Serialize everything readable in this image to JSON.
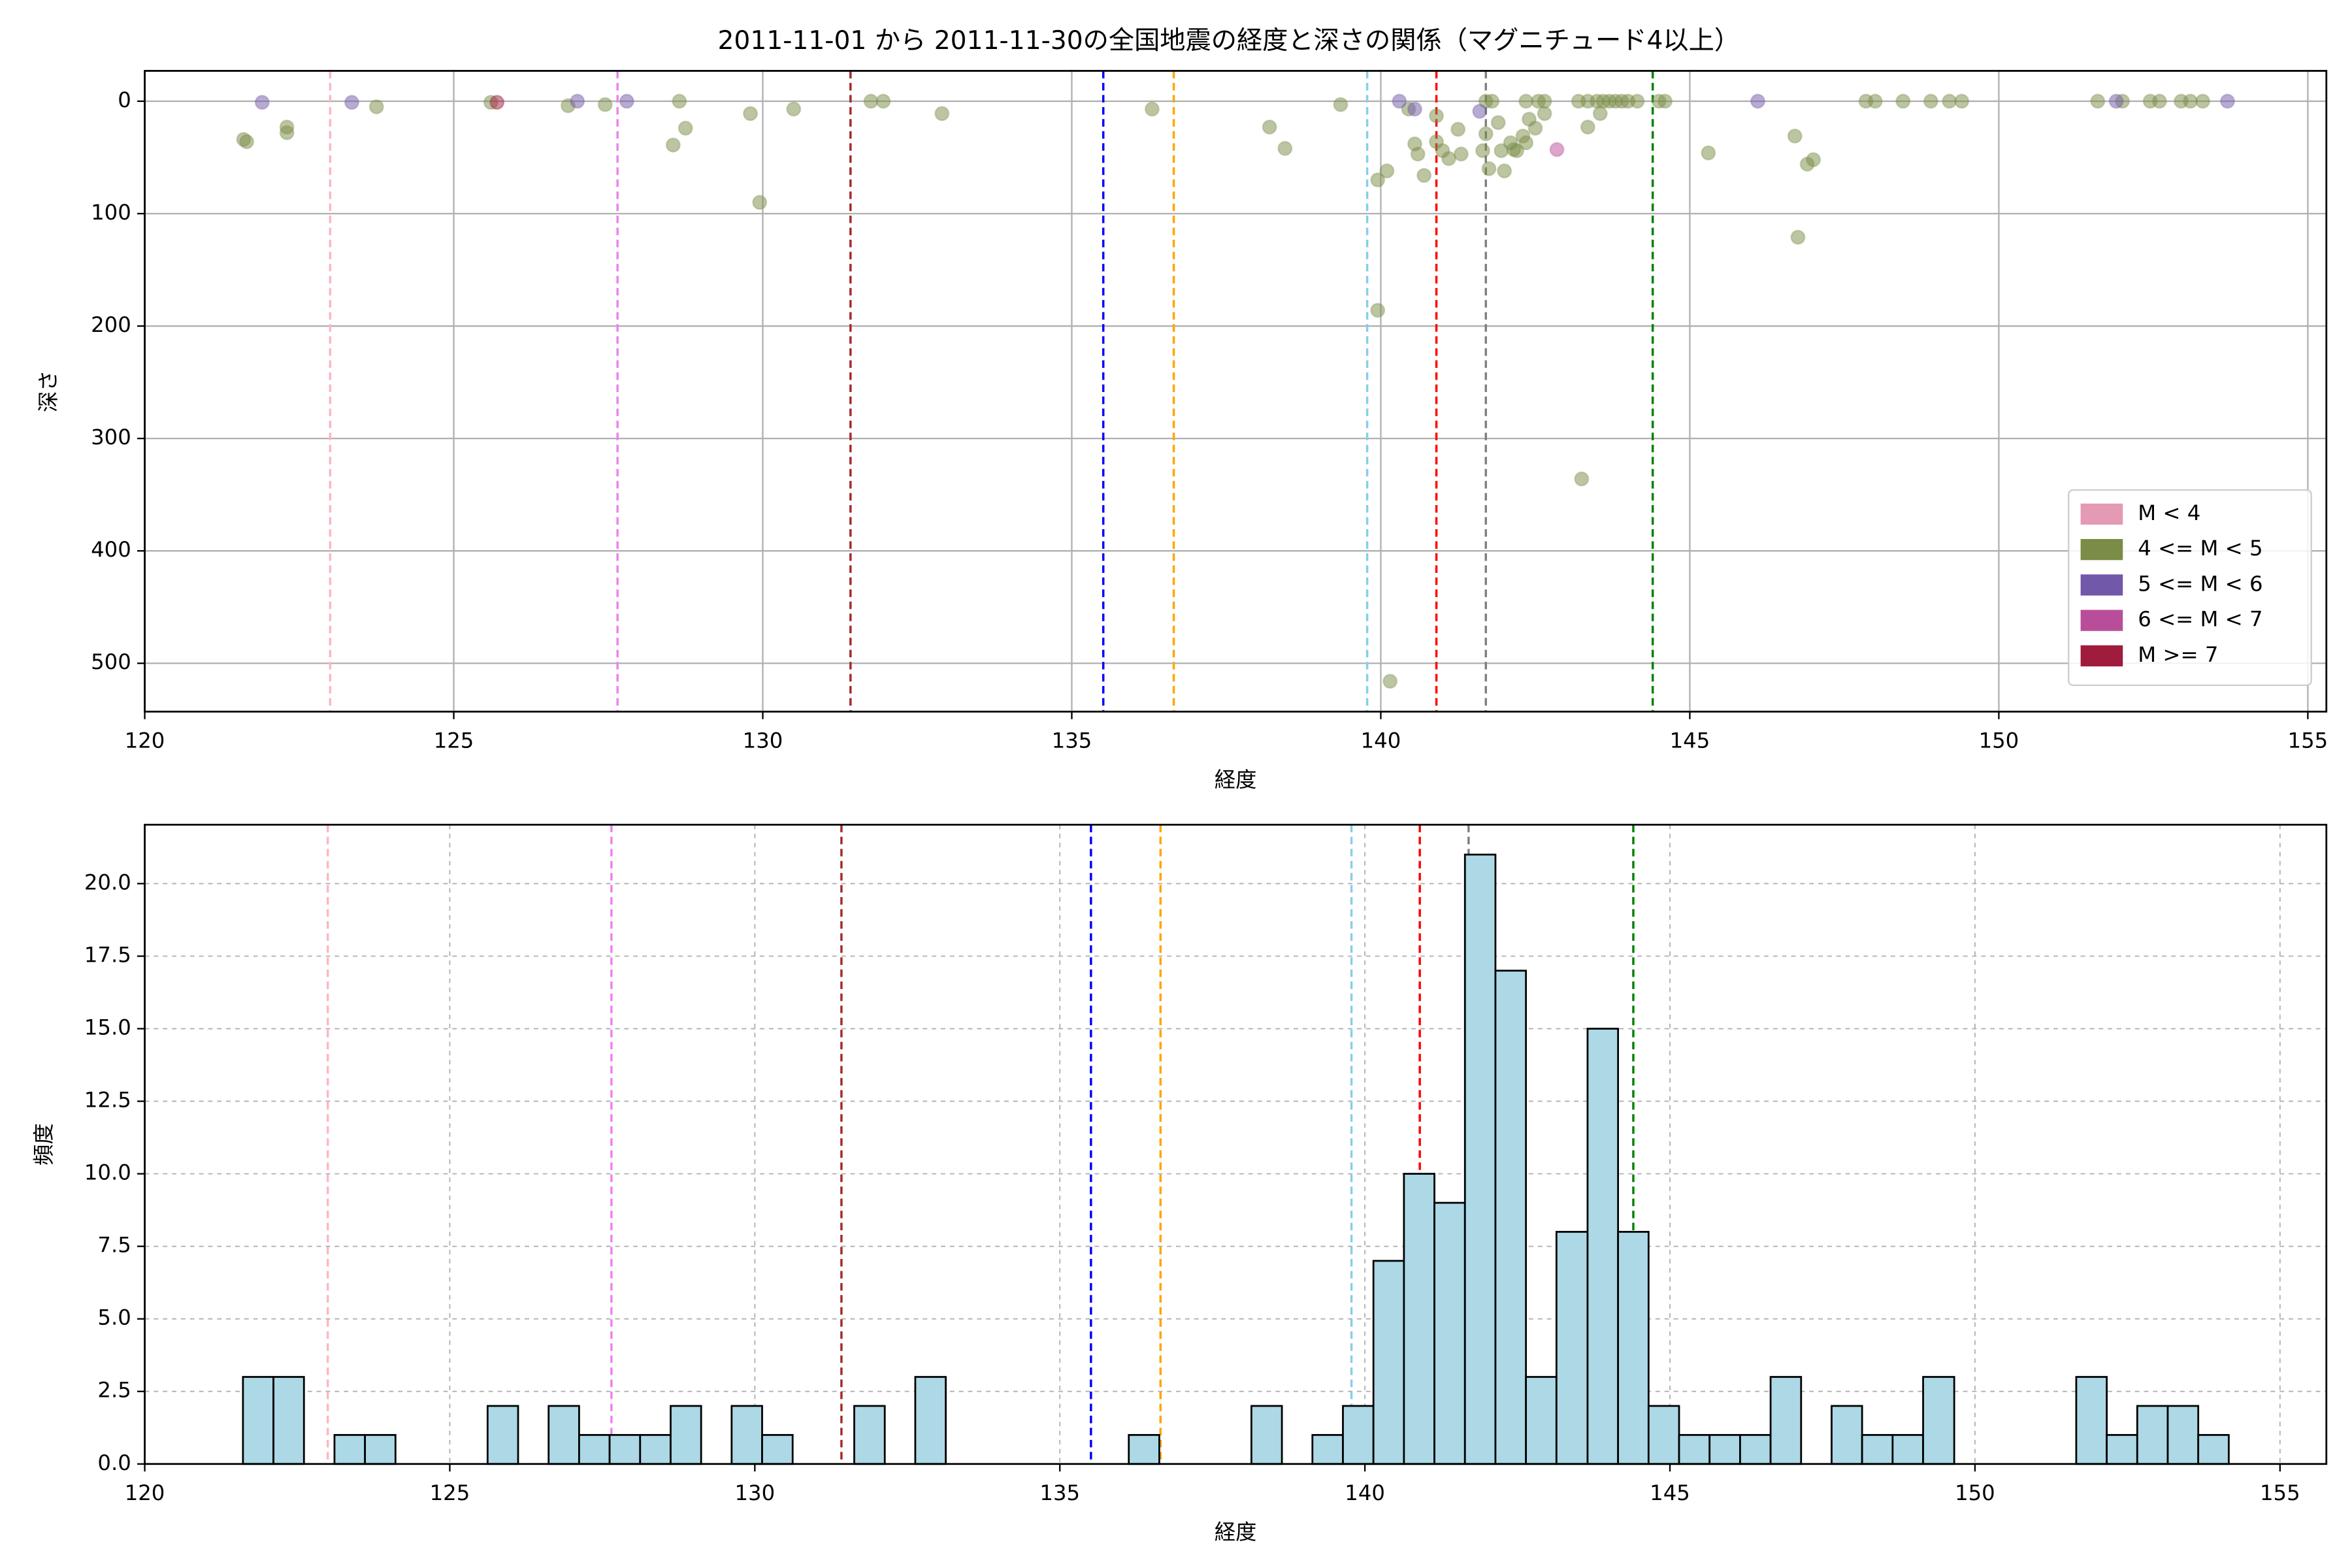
{
  "chart_data": [
    {
      "type": "scatter",
      "title": "2011-11-01 から 2011-11-30の全国地震の経度と深さの関係（マグニチュード4以上）",
      "xlabel": "経度",
      "ylabel": "深さ",
      "xlim": [
        120,
        155.3
      ],
      "xticks": [
        120,
        125,
        130,
        135,
        140,
        145,
        150,
        155
      ],
      "ylim": [
        -27,
        543
      ],
      "y_inverted": true,
      "yticks": [
        0,
        100,
        200,
        300,
        400,
        500
      ],
      "grid": true,
      "legend": "lower right",
      "alpha": 0.5,
      "vlines": [
        {
          "x": 123.0,
          "color": "#ffb6c1"
        },
        {
          "x": 127.65,
          "color": "#ee82ee"
        },
        {
          "x": 131.42,
          "color": "#a52a2a"
        },
        {
          "x": 135.51,
          "color": "#0000ff"
        },
        {
          "x": 136.65,
          "color": "#ffa500"
        },
        {
          "x": 139.78,
          "color": "#87ceeb"
        },
        {
          "x": 140.9,
          "color": "#ff0000"
        },
        {
          "x": 141.7,
          "color": "#808080"
        },
        {
          "x": 144.4,
          "color": "#008000"
        }
      ],
      "series": [
        {
          "name": "M < 4",
          "color": "#e49ab4",
          "x": [],
          "values": []
        },
        {
          "name": "4 <= M < 5",
          "color": "#7a8c45",
          "x": [
            121.6,
            121.65,
            122.3,
            122.3,
            123.75,
            125.6,
            126.85,
            127.45,
            128.65,
            128.55,
            128.75,
            129.8,
            129.95,
            130.5,
            131.75,
            131.95,
            132.9,
            136.3,
            138.2,
            138.45,
            139.35,
            139.95,
            139.95,
            140.1,
            140.15,
            140.45,
            140.6,
            140.7,
            140.9,
            140.9,
            141.0,
            141.1,
            141.3,
            141.7,
            141.8,
            141.75,
            142.0,
            141.95,
            142.15,
            142.3,
            142.35,
            142.55,
            142.65,
            142.65,
            142.5,
            142.35,
            142.2,
            142.4,
            143.2,
            143.35,
            143.5,
            143.6,
            143.7,
            143.8,
            143.9,
            144.0,
            144.15,
            144.5,
            144.6,
            143.35,
            143.55,
            143.25,
            145.3,
            146.7,
            146.75,
            146.9,
            147.0,
            147.85,
            148.0,
            148.45,
            148.9,
            149.2,
            149.4,
            151.6,
            152.0,
            152.45,
            152.6,
            152.95,
            153.1,
            153.3,
            141.65,
            141.9,
            141.7,
            142.1,
            140.55,
            141.25
          ],
          "values": [
            34,
            36,
            23,
            28,
            5,
            1,
            4,
            3,
            0,
            39,
            24,
            11,
            90,
            7,
            0,
            0,
            11,
            7,
            23,
            42,
            3,
            186,
            70,
            62,
            516,
            7,
            47,
            66,
            13,
            36,
            44,
            51,
            47,
            0,
            0,
            60,
            62,
            44,
            43,
            31,
            0,
            0,
            0,
            11,
            24,
            37,
            44,
            16,
            0,
            0,
            0,
            0,
            0,
            0,
            0,
            0,
            0,
            0,
            0,
            23,
            11,
            336,
            46,
            31,
            121,
            56,
            52,
            0,
            0,
            0,
            0,
            0,
            0,
            0,
            0,
            0,
            0,
            0,
            0,
            0,
            44,
            19,
            29,
            37,
            38,
            25
          ]
        },
        {
          "name": "5 <= M < 6",
          "color": "#7158a8",
          "x": [
            121.9,
            123.35,
            127.0,
            127.8,
            140.3,
            140.55,
            141.6,
            146.1,
            151.9,
            153.7
          ],
          "values": [
            1,
            1,
            0,
            0,
            0,
            7,
            9,
            0,
            0,
            0
          ]
        },
        {
          "name": "6 <= M < 7",
          "color": "#b84e9a",
          "x": [
            142.85
          ],
          "values": [
            43
          ]
        },
        {
          "name": "M >= 7",
          "color": "#a01c3c",
          "x": [
            125.7
          ],
          "values": [
            1
          ]
        }
      ]
    },
    {
      "type": "histogram",
      "xlabel": "経度",
      "ylabel": "頻度",
      "xlim": [
        120,
        155.76
      ],
      "xticks": [
        120,
        125,
        130,
        135,
        140,
        145,
        150,
        155
      ],
      "ylim": [
        0,
        22.03
      ],
      "yticks": [
        {
          "value": 0,
          "label": "0.0"
        },
        {
          "value": 2.5,
          "label": "2.5"
        },
        {
          "value": 5,
          "label": "5.0"
        },
        {
          "value": 7.5,
          "label": "7.5"
        },
        {
          "value": 10,
          "label": "10.0"
        },
        {
          "value": 12.5,
          "label": "12.5"
        },
        {
          "value": 15,
          "label": "15.0"
        },
        {
          "value": 17.5,
          "label": "17.5"
        },
        {
          "value": 20,
          "label": "20.0"
        }
      ],
      "grid": true,
      "color": "#add8e6",
      "edgecolor": "#000000",
      "vlines": [
        {
          "x": 123.0,
          "color": "#ffb6c1"
        },
        {
          "x": 127.65,
          "color": "#ee82ee"
        },
        {
          "x": 131.42,
          "color": "#a52a2a"
        },
        {
          "x": 135.51,
          "color": "#0000ff"
        },
        {
          "x": 136.65,
          "color": "#ffa500"
        },
        {
          "x": 139.78,
          "color": "#87ceeb"
        },
        {
          "x": 140.9,
          "color": "#ff0000"
        },
        {
          "x": 141.7,
          "color": "#808080"
        },
        {
          "x": 144.4,
          "color": "#008000"
        }
      ],
      "bins": [
        121.61,
        122.11,
        122.61,
        123.11,
        123.61,
        124.11,
        124.61,
        125.12,
        125.62,
        126.12,
        126.62,
        127.12,
        127.62,
        128.12,
        128.62,
        129.12,
        129.62,
        130.12,
        130.62,
        131.13,
        131.63,
        132.13,
        132.63,
        133.13,
        133.63,
        134.13,
        134.63,
        135.13,
        135.63,
        136.13,
        136.63,
        137.13,
        137.64,
        138.14,
        138.64,
        139.14,
        139.64,
        140.14,
        140.64,
        141.14,
        141.64,
        142.14,
        142.64,
        143.14,
        143.65,
        144.15,
        144.65,
        145.15,
        145.65,
        146.15,
        146.65,
        147.15,
        147.65,
        148.15,
        148.65,
        149.15,
        149.66,
        150.16,
        150.66,
        151.16,
        151.66,
        152.16,
        152.66,
        153.16,
        153.66,
        154.16
      ],
      "values": [
        3,
        3,
        0,
        1,
        1,
        0,
        0,
        0,
        2,
        0,
        2,
        1,
        1,
        1,
        2,
        0,
        2,
        1,
        0,
        0,
        2,
        0,
        3,
        0,
        0,
        0,
        0,
        0,
        0,
        1,
        0,
        0,
        0,
        2,
        0,
        1,
        2,
        7,
        10,
        9,
        21,
        17,
        3,
        8,
        15,
        8,
        2,
        1,
        1,
        1,
        3,
        0,
        2,
        1,
        1,
        3,
        0,
        0,
        0,
        0,
        3,
        1,
        2,
        2,
        1
      ]
    }
  ]
}
